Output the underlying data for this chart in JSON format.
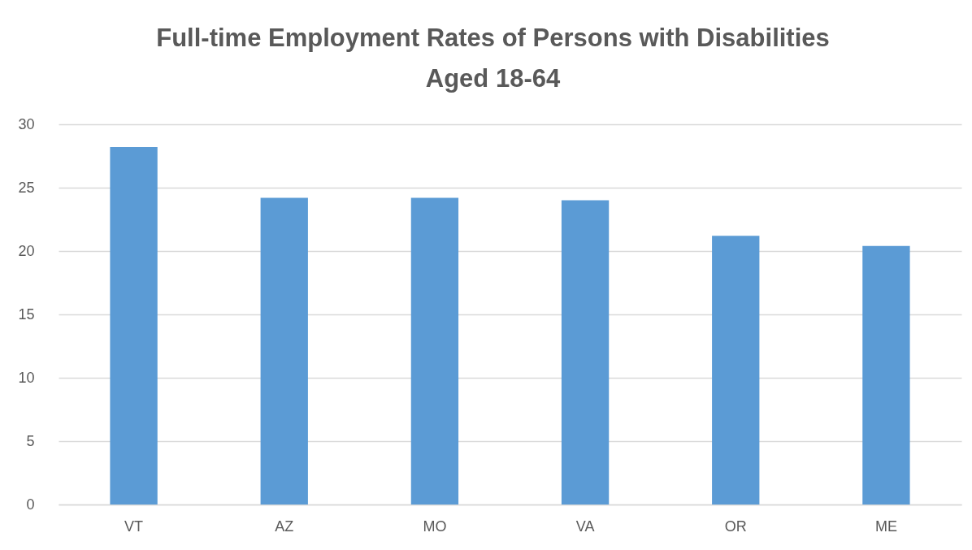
{
  "chart_data": {
    "type": "bar",
    "title": "Full-time Employment Rates of Persons with Disabilities\nAged 18-64",
    "categories": [
      "VT",
      "AZ",
      "MO",
      "VA",
      "OR",
      "ME"
    ],
    "values": [
      28.2,
      24.2,
      24.2,
      24.0,
      21.2,
      20.4
    ],
    "color": "#5b9bd5",
    "ylim": [
      0,
      30
    ],
    "yticks": [
      0,
      5,
      10,
      15,
      20,
      25,
      30
    ],
    "grid": "y"
  }
}
